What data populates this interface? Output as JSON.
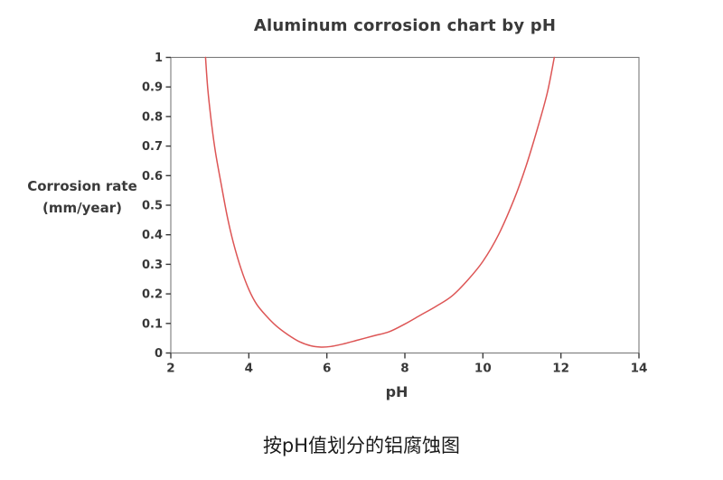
{
  "figure": {
    "caption": "按pH值划分的铝腐蚀图"
  },
  "chart_data": {
    "type": "line",
    "title": "Aluminum corrosion chart by pH",
    "xlabel": "pH",
    "ylabel": "Corrosion rate (mm/year)",
    "ylabel_lines": [
      "Corrosion rate",
      "(mm/year)"
    ],
    "xlim": [
      2,
      14
    ],
    "ylim": [
      0,
      1
    ],
    "grid": false,
    "legend": false,
    "x_axis": {
      "tick_values": [
        2,
        4,
        6,
        8,
        10,
        12,
        14
      ],
      "tick_labels": [
        "2",
        "4",
        "6",
        "8",
        "10",
        "12",
        "14"
      ]
    },
    "y_axis": {
      "tick_values": [
        0,
        0.1,
        0.2,
        0.3,
        0.4,
        0.5,
        0.6,
        0.7,
        0.8,
        0.9,
        1
      ],
      "tick_labels": [
        "0",
        "0.1",
        "0.2",
        "0.3",
        "0.4",
        "0.5",
        "0.6",
        "0.7",
        "0.8",
        "0.9",
        "1"
      ]
    },
    "series": [
      {
        "name": "Aluminum corrosion rate",
        "color": "#dd5555",
        "points": [
          [
            2.89,
            1.0
          ],
          [
            2.95,
            0.89
          ],
          [
            3.05,
            0.77
          ],
          [
            3.15,
            0.675
          ],
          [
            3.3,
            0.565
          ],
          [
            3.45,
            0.46
          ],
          [
            3.6,
            0.375
          ],
          [
            3.8,
            0.285
          ],
          [
            4.0,
            0.215
          ],
          [
            4.2,
            0.165
          ],
          [
            4.45,
            0.125
          ],
          [
            4.7,
            0.092
          ],
          [
            5.0,
            0.062
          ],
          [
            5.3,
            0.038
          ],
          [
            5.6,
            0.024
          ],
          [
            5.85,
            0.02
          ],
          [
            6.1,
            0.022
          ],
          [
            6.4,
            0.03
          ],
          [
            6.8,
            0.044
          ],
          [
            7.2,
            0.058
          ],
          [
            7.6,
            0.072
          ],
          [
            8.0,
            0.098
          ],
          [
            8.4,
            0.128
          ],
          [
            8.8,
            0.158
          ],
          [
            9.2,
            0.192
          ],
          [
            9.6,
            0.245
          ],
          [
            10.0,
            0.31
          ],
          [
            10.4,
            0.4
          ],
          [
            10.8,
            0.52
          ],
          [
            11.1,
            0.63
          ],
          [
            11.4,
            0.76
          ],
          [
            11.65,
            0.88
          ],
          [
            11.83,
            1.0
          ]
        ]
      }
    ]
  },
  "colors": {
    "background": "#ffffff",
    "box_border": "#7a7a7a",
    "tick": "#3a3a3a",
    "text": "#3a3a3a",
    "caption_text": "#1a1a1a",
    "curve": "#dd5555"
  }
}
